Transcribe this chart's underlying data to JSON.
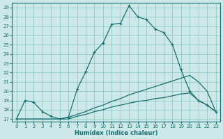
{
  "xlabel": "Humidex (Indice chaleur)",
  "bg_color": "#cce8e8",
  "grid_color": "#88c0c0",
  "line_color": "#1a7070",
  "xlim_min": -0.5,
  "xlim_max": 23.5,
  "ylim_min": 16.7,
  "ylim_max": 29.5,
  "xticks": [
    0,
    1,
    2,
    3,
    4,
    5,
    6,
    7,
    8,
    9,
    10,
    11,
    12,
    13,
    14,
    15,
    16,
    17,
    18,
    19,
    20,
    21,
    22,
    23
  ],
  "yticks": [
    17,
    18,
    19,
    20,
    21,
    22,
    23,
    24,
    25,
    26,
    27,
    28,
    29
  ],
  "line1_x": [
    0,
    1,
    2,
    3,
    4,
    5,
    6,
    7,
    8,
    9,
    10,
    11,
    12,
    13,
    14,
    15,
    16,
    17,
    18,
    19,
    20,
    21,
    22,
    23
  ],
  "line1_y": [
    17,
    19,
    18.8,
    17.8,
    17.3,
    17.0,
    17.2,
    20.2,
    22.1,
    24.2,
    25.2,
    27.2,
    27.3,
    29.2,
    28.0,
    27.7,
    26.7,
    26.3,
    25.0,
    22.3,
    20.0,
    19.0,
    18.5,
    17.8
  ],
  "line2_x": [
    0,
    1,
    2,
    3,
    4,
    5,
    6,
    7,
    8,
    9,
    10,
    11,
    12,
    13,
    14,
    15,
    16,
    17,
    18,
    19,
    20,
    21,
    22,
    23
  ],
  "line2_y": [
    17,
    17,
    17,
    17,
    17,
    17,
    17.2,
    17.5,
    17.8,
    18.2,
    18.5,
    18.9,
    19.2,
    19.6,
    19.9,
    20.2,
    20.5,
    20.8,
    21.1,
    21.4,
    21.7,
    21.0,
    20.0,
    17.8
  ],
  "line3_x": [
    0,
    1,
    2,
    3,
    4,
    5,
    6,
    7,
    8,
    9,
    10,
    11,
    12,
    13,
    14,
    15,
    16,
    17,
    18,
    19,
    20,
    21,
    22,
    23
  ],
  "line3_y": [
    17,
    17,
    17,
    17,
    17,
    17,
    17.0,
    17.3,
    17.5,
    17.8,
    18.0,
    18.3,
    18.5,
    18.7,
    18.9,
    19.0,
    19.2,
    19.3,
    19.5,
    19.7,
    19.8,
    19.0,
    18.5,
    17.8
  ]
}
